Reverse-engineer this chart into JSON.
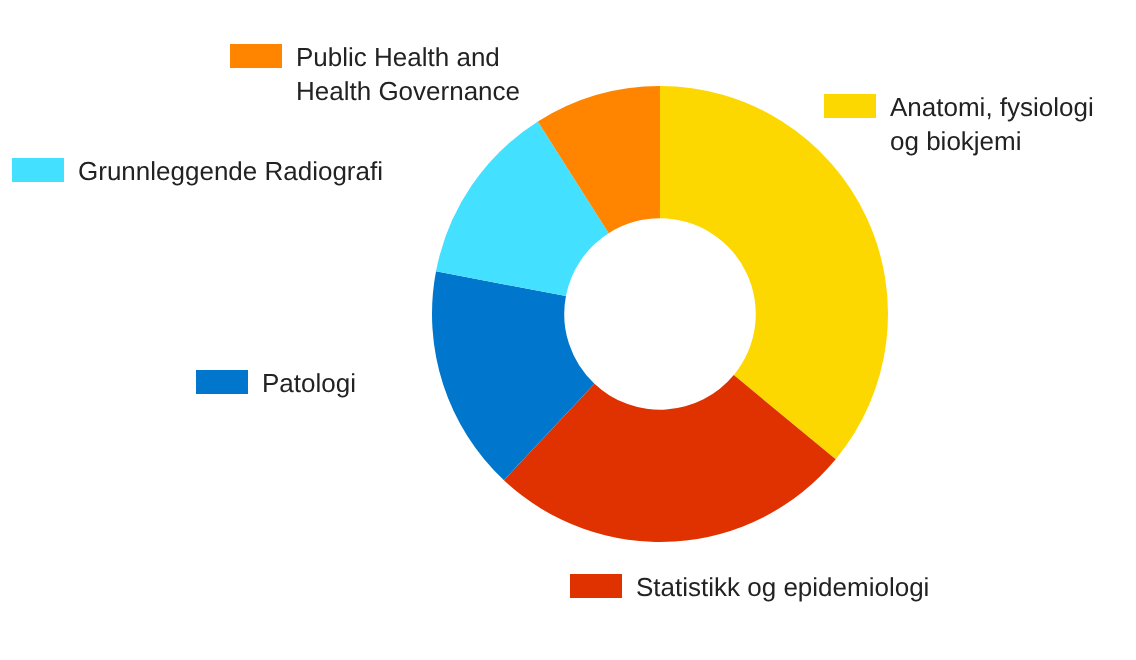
{
  "chart_data": {
    "type": "donut",
    "categories": [
      "Anatomi, fysiologi\nog biokjemi",
      "Statistikk og epidemiologi",
      "Patologi",
      "Grunnleggende Radiografi",
      "Public Health and\nHealth Governance"
    ],
    "values": [
      36,
      26,
      16,
      13,
      9
    ],
    "colors": [
      "#fdd800",
      "#e03200",
      "#0077cc",
      "#44e0ff",
      "#ff8400"
    ],
    "legend": "left"
  }
}
